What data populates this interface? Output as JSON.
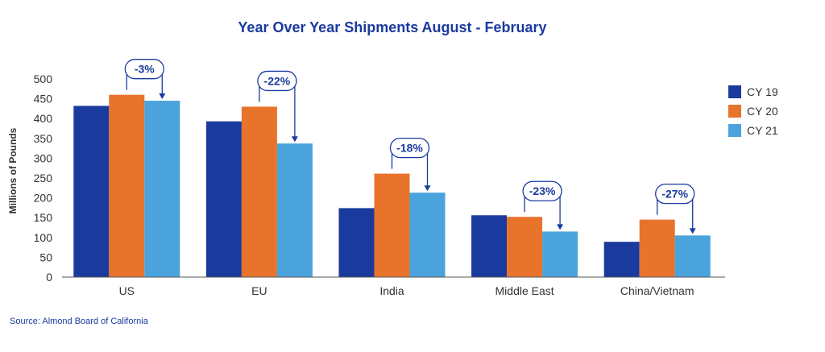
{
  "chart_data": {
    "type": "bar",
    "title": "Year Over Year Shipments August - February",
    "ylabel": "Millions of Pounds",
    "xlabel": "",
    "ylim": [
      0,
      500
    ],
    "yticks": [
      0,
      50,
      100,
      150,
      200,
      250,
      300,
      350,
      400,
      450,
      500
    ],
    "categories": [
      "US",
      "EU",
      "India",
      "Middle East",
      "China/Vietnam"
    ],
    "series": [
      {
        "name": "CY 19",
        "color": "#1a3a9e",
        "values": [
          432,
          393,
          174,
          156,
          89
        ]
      },
      {
        "name": "CY 20",
        "color": "#e8732a",
        "values": [
          460,
          430,
          261,
          152,
          145
        ]
      },
      {
        "name": "CY 21",
        "color": "#4aa3dc",
        "values": [
          445,
          337,
          213,
          115,
          105
        ]
      }
    ],
    "annotations": [
      "-3%",
      "-22%",
      "-18%",
      "-23%",
      "-27%"
    ],
    "legend_position": "right",
    "grid": false
  },
  "source": "Source: Almond Board of California",
  "colors": {
    "title": "#1a3a9e",
    "annotation": "#1a3a9e",
    "axis": "#333333",
    "source": "#1a3a9e"
  }
}
